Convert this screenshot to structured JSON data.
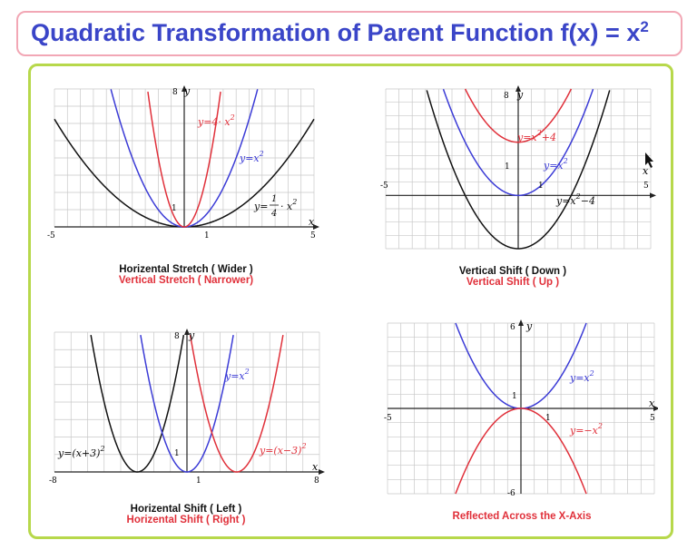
{
  "title": {
    "text": "Quadratic Transformation of Parent Function f(x) = x",
    "sup": "2"
  },
  "colors": {
    "black": "#111111",
    "blue": "#3b3bd6",
    "red": "#e0303a",
    "grid": "#c8c8c8"
  },
  "graphs": [
    {
      "id": "stretch",
      "xlim": [
        -5,
        5
      ],
      "ylim": [
        0,
        8
      ],
      "ticks": {
        "xmin": "-5",
        "xmax": "5",
        "xone": "1",
        "ymax": "8",
        "yone": "1"
      },
      "xlabel": "x",
      "ylabel": "y",
      "curves": [
        {
          "expr": "0.25*x^2",
          "color": "black",
          "label": "y=¼·x²"
        },
        {
          "expr": "x^2",
          "color": "blue",
          "label": "y=x²"
        },
        {
          "expr": "4*x^2",
          "color": "red",
          "label": "y=4·x²"
        }
      ],
      "labels": {
        "black_pre": "y=",
        "black_num": "1",
        "black_den": "4",
        "black_post": "· x",
        "blue": "y=x",
        "red": "y=4· x",
        "sq": "2"
      },
      "caption": {
        "line1": "Horizental Stretch ( Wider )",
        "line2": "Vertical Stretch ( Narrower)"
      }
    },
    {
      "id": "vshift",
      "xlim": [
        -5,
        5
      ],
      "ylim": [
        -4,
        8
      ],
      "ticks": {
        "xmin": "-5",
        "xmax": "5",
        "xone": "1",
        "ymax": "8",
        "yone": "1"
      },
      "xlabel": "x",
      "ylabel": "y",
      "curves": [
        {
          "expr": "x^2-4",
          "color": "black",
          "label": "y=x²−4"
        },
        {
          "expr": "x^2",
          "color": "blue",
          "label": "y=x²"
        },
        {
          "expr": "x^2+4",
          "color": "red",
          "label": "y=x²+4"
        }
      ],
      "labels": {
        "black": "y=x",
        "black_post": "−4",
        "blue": "y=x",
        "red": "y=x",
        "red_post": "+4",
        "sq": "2"
      },
      "caption": {
        "line1": "Vertical Shift ( Down )",
        "line2": "Vertical Shift ( Up )"
      }
    },
    {
      "id": "hshift",
      "xlim": [
        -8,
        8
      ],
      "ylim": [
        0,
        8
      ],
      "ticks": {
        "xmin": "-8",
        "xmax": "8",
        "xone": "1",
        "ymax": "8",
        "yone": "1"
      },
      "xlabel": "x",
      "ylabel": "y",
      "curves": [
        {
          "expr": "(x+3)^2",
          "color": "black",
          "label": "y=(x+3)²"
        },
        {
          "expr": "x^2",
          "color": "blue",
          "label": "y=x²"
        },
        {
          "expr": "(x-3)^2",
          "color": "red",
          "label": "y=(x−3)²"
        }
      ],
      "labels": {
        "black": "y=(x+3)",
        "blue": "y=x",
        "red": "y=(x−3)",
        "sq": "2"
      },
      "caption": {
        "line1": "Horizental Shift ( Left )",
        "line2": "Horizental Shift ( Right )"
      }
    },
    {
      "id": "reflect",
      "xlim": [
        -5,
        5
      ],
      "ylim": [
        -6,
        6
      ],
      "ticks": {
        "xmin": "-5",
        "xmax": "5",
        "xone": "1",
        "ymax": "6",
        "ymin": "-6",
        "yone": "1"
      },
      "xlabel": "x",
      "ylabel": "y",
      "curves": [
        {
          "expr": "x^2",
          "color": "blue",
          "label": "y=x²"
        },
        {
          "expr": "-x^2",
          "color": "red",
          "label": "y=−x²"
        }
      ],
      "labels": {
        "blue": "y=x",
        "red": "y=−x",
        "sq": "2"
      },
      "caption": {
        "line2": "Reflected Across the X-Axis"
      }
    }
  ]
}
